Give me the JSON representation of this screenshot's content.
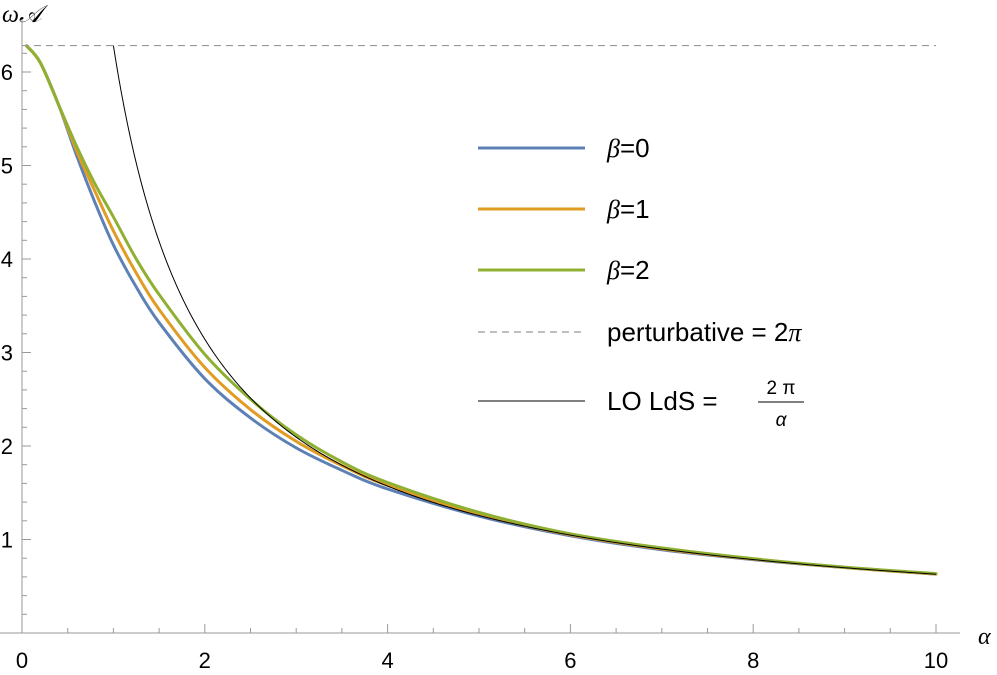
{
  "chart_data": {
    "type": "line",
    "xlabel": "α",
    "ylabel": "ω𝒜",
    "xlim": [
      0,
      10
    ],
    "ylim": [
      0,
      6.28
    ],
    "x_ticks": [
      "0",
      "2",
      "4",
      "6",
      "8",
      "10"
    ],
    "y_ticks": [
      "1",
      "2",
      "3",
      "4",
      "5",
      "6"
    ],
    "grid": false,
    "legend_position": "right",
    "series": [
      {
        "name": "β=0",
        "name_symbol": "β",
        "name_rest": "=0",
        "color": "#5E81B5",
        "style": "solid",
        "x": [
          0.05,
          0.2,
          0.4,
          0.6,
          0.8,
          1.0,
          1.25,
          1.5,
          2.0,
          2.5,
          3.0,
          3.5,
          4.0,
          5.0,
          6.0,
          7.0,
          8.0,
          9.0,
          10.0
        ],
        "y": [
          6.28,
          6.1,
          5.65,
          5.1,
          4.6,
          4.15,
          3.7,
          3.32,
          2.72,
          2.3,
          1.98,
          1.74,
          1.54,
          1.25,
          1.04,
          0.89,
          0.785,
          0.7,
          0.63
        ]
      },
      {
        "name": "β=1",
        "name_symbol": "β",
        "name_rest": "=1",
        "color": "#E19C24",
        "style": "solid",
        "x": [
          0.05,
          0.2,
          0.4,
          0.6,
          0.8,
          1.0,
          1.25,
          1.5,
          2.0,
          2.5,
          3.0,
          3.5,
          4.0,
          5.0,
          6.0,
          7.0,
          8.0,
          9.0,
          10.0
        ],
        "y": [
          6.28,
          6.1,
          5.65,
          5.15,
          4.72,
          4.3,
          3.85,
          3.46,
          2.84,
          2.39,
          2.05,
          1.79,
          1.58,
          1.27,
          1.05,
          0.9,
          0.79,
          0.7,
          0.63
        ]
      },
      {
        "name": "β=2",
        "name_symbol": "β",
        "name_rest": "=2",
        "color": "#8FB032",
        "style": "solid",
        "x": [
          0.05,
          0.2,
          0.4,
          0.6,
          0.8,
          1.0,
          1.25,
          1.5,
          2.0,
          2.5,
          3.0,
          3.5,
          4.0,
          5.0,
          6.0,
          7.0,
          8.0,
          9.0,
          10.0
        ],
        "y": [
          6.28,
          6.1,
          5.65,
          5.2,
          4.8,
          4.45,
          4.0,
          3.62,
          2.98,
          2.5,
          2.12,
          1.83,
          1.61,
          1.29,
          1.06,
          0.91,
          0.795,
          0.705,
          0.635
        ]
      },
      {
        "name": "perturbative = 2π",
        "label_text": "perturbative = 2",
        "label_symbol": "π",
        "color": "#999999",
        "style": "dashed",
        "x": [
          0,
          10
        ],
        "y": [
          6.283,
          6.283
        ]
      },
      {
        "name": "LO LdS = 2π/α",
        "label_text": "LO LdS = ",
        "frac_num": "2 π",
        "frac_den": "α",
        "color": "#000000",
        "style": "thin",
        "formula": "2π/α",
        "x_range": [
          1.0,
          10.0
        ]
      }
    ]
  }
}
